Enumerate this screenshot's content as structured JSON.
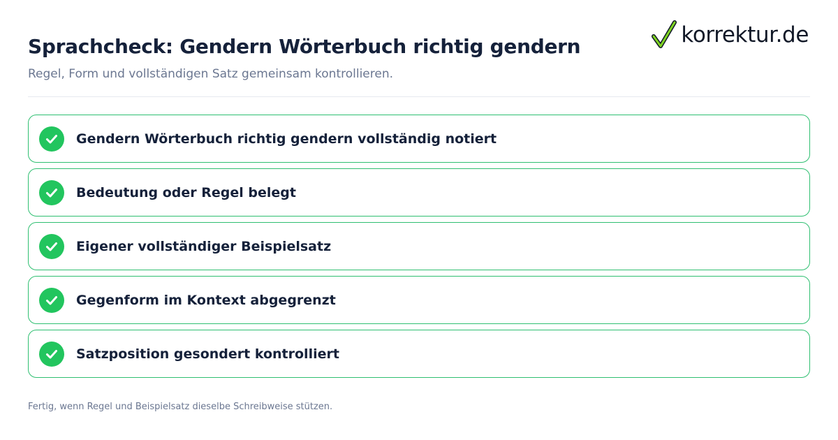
{
  "header": {
    "title": "Sprachcheck: Gendern Wörterbuch richtig gendern",
    "subtitle": "Regel, Form und vollständigen Satz gemeinsam kontrollieren."
  },
  "logo": {
    "text": "korrektur.de",
    "icon": "checkmark-icon",
    "check_color": "#7ed321"
  },
  "checklist": {
    "accent_color": "#22c55e",
    "items": [
      {
        "label": "Gendern Wörterbuch richtig gendern vollständig notiert",
        "checked": true
      },
      {
        "label": "Bedeutung oder Regel belegt",
        "checked": true
      },
      {
        "label": "Eigener vollständiger Beispielsatz",
        "checked": true
      },
      {
        "label": "Gegenform im Kontext abgegrenzt",
        "checked": true
      },
      {
        "label": "Satzposition gesondert kontrolliert",
        "checked": true
      }
    ]
  },
  "footer": {
    "note": "Fertig, wenn Regel und Beispielsatz dieselbe Schreibweise stützen."
  }
}
